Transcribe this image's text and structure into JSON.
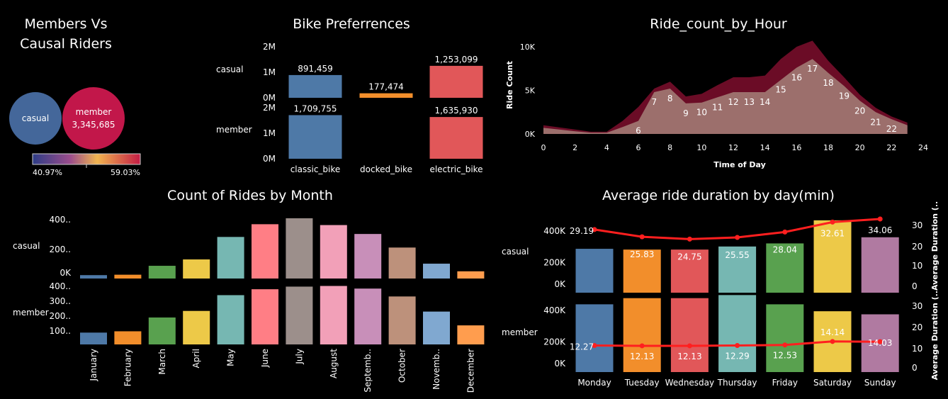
{
  "panel_bubbles": {
    "title_line1": "Members Vs",
    "title_line2": "Causal Riders",
    "casual_label": "casual",
    "member_label": "member",
    "member_value": "3,345,685",
    "legend_min": "40.97%",
    "legend_max": "59.03%"
  },
  "panel_bike": {
    "title": "Bike Preferrences"
  },
  "panel_hour": {
    "title": "Ride_count_by_Hour"
  },
  "panel_month": {
    "title": "Count of Rides by Month"
  },
  "panel_day": {
    "title": "Average ride duration by day(min)"
  },
  "chart_data": [
    {
      "id": "members_vs_casual",
      "type": "bubble",
      "title": "Members Vs Causal Riders",
      "categories": [
        "casual",
        "member"
      ],
      "share_pct": [
        40.97,
        59.03
      ],
      "values": [
        null,
        3345685
      ],
      "value_labels": [
        "",
        "3,345,685"
      ],
      "colors": [
        "#44679a",
        "#c2174a"
      ],
      "legend": "bottom",
      "gradient_stops": [
        "#2e3d86",
        "#9b4d8c",
        "#f1b550",
        "#c41c45"
      ],
      "gradient_range": [
        "40.97%",
        "59.03%"
      ]
    },
    {
      "id": "bike_preferences",
      "type": "bar",
      "title": "Bike Preferrences",
      "categories": [
        "classic_bike",
        "docked_bike",
        "electric_bike"
      ],
      "rows": [
        {
          "name": "casual",
          "values": [
            891459,
            177474,
            1253099
          ],
          "labels": [
            "891,459",
            "177,474",
            "1,253,099"
          ]
        },
        {
          "name": "member",
          "values": [
            1709755,
            0,
            1635930
          ],
          "labels": [
            "1,709,755",
            "",
            "1,635,930"
          ]
        }
      ],
      "colors": [
        "#4e79a7",
        "#f28e2b",
        "#e15759"
      ],
      "yticks_casual": [
        "2M",
        "1M",
        "0M"
      ],
      "yticks_member": [
        "2M",
        "1M",
        "0M"
      ],
      "ylim": [
        0,
        2000000
      ]
    },
    {
      "id": "ride_count_by_hour",
      "type": "area",
      "title": "Ride_count_by_Hour",
      "xlabel": "Time of Day",
      "ylabel": "Ride Count",
      "x": [
        0,
        1,
        2,
        3,
        4,
        5,
        6,
        7,
        8,
        9,
        10,
        11,
        12,
        13,
        14,
        15,
        16,
        17,
        18,
        19,
        20,
        21,
        22,
        23
      ],
      "total": [
        1000,
        750,
        500,
        250,
        250,
        1500,
        3100,
        5200,
        6000,
        4300,
        4600,
        5600,
        6500,
        6500,
        6700,
        8600,
        10000,
        10700,
        8400,
        6500,
        4500,
        3000,
        2000,
        1300
      ],
      "casual_part": [
        700,
        500,
        300,
        150,
        150,
        800,
        1500,
        4800,
        5200,
        3500,
        3600,
        4200,
        4800,
        4800,
        4800,
        6200,
        7600,
        8600,
        7000,
        5500,
        3800,
        2500,
        1700,
        1000
      ],
      "point_labels": {
        "6": "6",
        "7": "7",
        "8": "8",
        "9": "9",
        "10": "10",
        "11": "11",
        "12": "12",
        "13": "13",
        "14": "14",
        "15": "15",
        "16": "16",
        "17": "17",
        "18": "18",
        "19": "19",
        "20": "20",
        "21": "21",
        "22": "22"
      },
      "xticks": [
        "0",
        "2",
        "4",
        "6",
        "8",
        "10",
        "12",
        "14",
        "16",
        "18",
        "20",
        "22",
        "24"
      ],
      "yticks": [
        "10K",
        "5K",
        "0K"
      ],
      "ylim": [
        0,
        11000
      ],
      "colors": {
        "outer": "#6b0c26",
        "inner": "#9c6f6c"
      }
    },
    {
      "id": "rides_by_month",
      "type": "bar",
      "title": "Count of Rides by Month",
      "categories": [
        "January",
        "February",
        "March",
        "April",
        "May",
        "June",
        "July",
        "August",
        "Septemb..",
        "October",
        "Novemb..",
        "December"
      ],
      "series": [
        {
          "name": "casual",
          "values": [
            40,
            45,
            150,
            225,
            490,
            640,
            710,
            630,
            525,
            365,
            175,
            85
          ]
        },
        {
          "name": "member",
          "values": [
            90,
            100,
            205,
            255,
            375,
            420,
            440,
            445,
            425,
            365,
            250,
            145
          ]
        }
      ],
      "colors": [
        "#4e79a7",
        "#f28e2b",
        "#59a14f",
        "#edc948",
        "#76b7b2",
        "#ff7e85",
        "#9c8f8b",
        "#f2a0b8",
        "#c88fb9",
        "#bd917b",
        "#80a8d0",
        "#ff9d4e"
      ],
      "yticks_casual": [
        "400..",
        "200..",
        "0K"
      ],
      "yticks_member": [
        "400..",
        "300..",
        "200..",
        "100.."
      ],
      "ylim_casual": [
        0,
        760
      ],
      "ylim_member": [
        0,
        480
      ]
    },
    {
      "id": "avg_duration_by_day",
      "type": "bar",
      "title": "Average ride duration by day(min)",
      "categories": [
        "Monday",
        "Tuesday",
        "Wednesday",
        "Thursday",
        "Friday",
        "Saturday",
        "Sunday"
      ],
      "series": [
        {
          "name": "casual",
          "counts": [
            285000,
            280000,
            280000,
            300000,
            320000,
            470000,
            360000
          ],
          "avg_duration": [
            29.19,
            25.83,
            24.75,
            25.55,
            28.04,
            32.61,
            34.06
          ]
        },
        {
          "name": "member",
          "counts": [
            440000,
            480000,
            480000,
            500000,
            440000,
            395000,
            375000
          ],
          "avg_duration": [
            12.27,
            12.13,
            12.13,
            12.29,
            12.53,
            14.14,
            14.03
          ]
        }
      ],
      "duration_labels_casual": [
        "29.19",
        "25.83",
        "24.75",
        "25.55",
        "28.04",
        "32.61",
        "34.06"
      ],
      "duration_labels_member": [
        "12.27",
        "12.13",
        "12.13",
        "12.29",
        "12.53",
        "14.14",
        "14.03"
      ],
      "colors": [
        "#4e79a7",
        "#f28e2b",
        "#e15759",
        "#76b7b2",
        "#59a14f",
        "#edc948",
        "#b07aa1"
      ],
      "line_color": "#ff1f1f",
      "yticks_left_casual": [
        "400K",
        "200K",
        "0K"
      ],
      "yticks_left_member": [
        "400K",
        "200K",
        "0K"
      ],
      "yticks_right": [
        "30",
        "20",
        "10",
        "0"
      ],
      "ylabel_right": "Average Duration (..Average Duration (..",
      "ylim_count": [
        0,
        520000
      ],
      "ylim_duration": [
        0,
        37
      ]
    }
  ]
}
